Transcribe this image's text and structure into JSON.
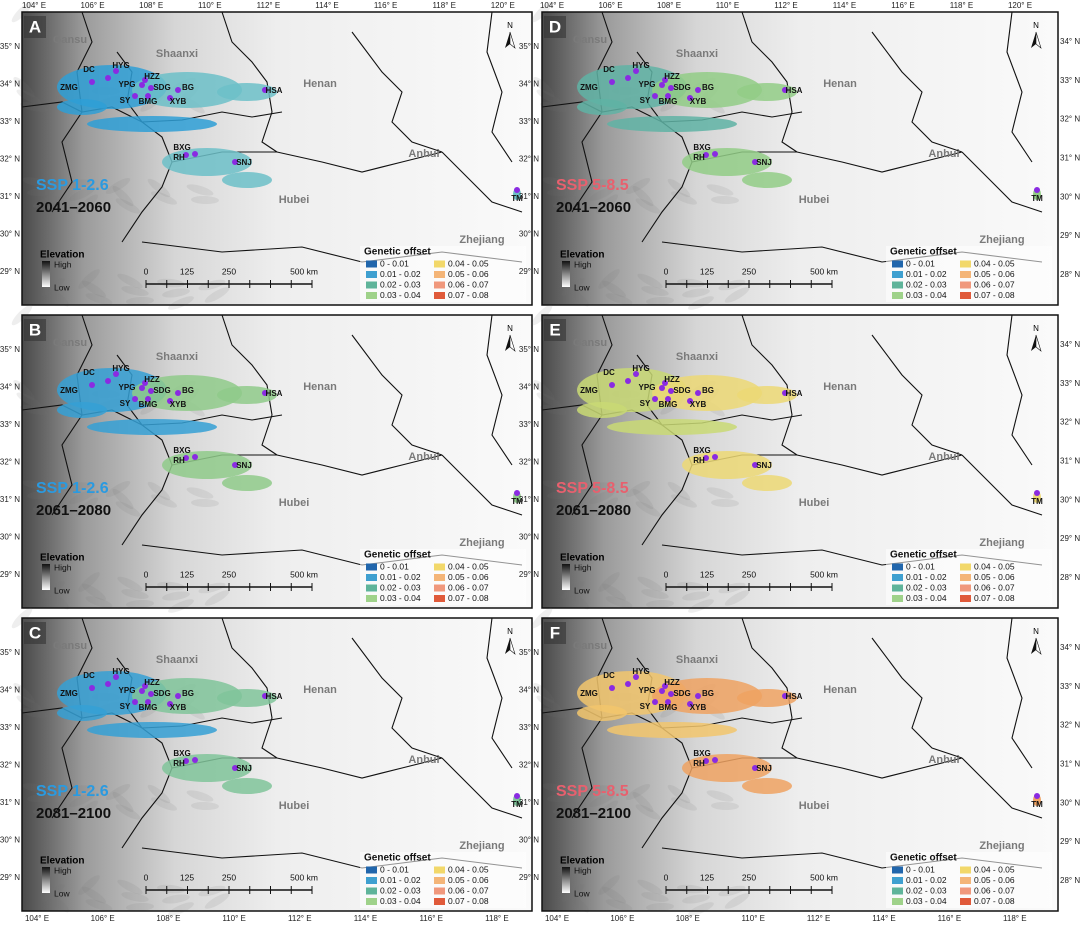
{
  "map": {
    "lon_top": [
      "104° E",
      "106° E",
      "108° E",
      "110° E",
      "112° E",
      "114° E",
      "116° E",
      "118° E",
      "120° E"
    ],
    "lon_bottom": [
      "104° E",
      "106° E",
      "108° E",
      "110° E",
      "112° E",
      "114° E",
      "116° E",
      "118° E"
    ],
    "lat_left": [
      "35° N",
      "34° N",
      "33° N",
      "32° N",
      "31° N",
      "30° N",
      "29° N"
    ],
    "lat_right": [
      "34° N",
      "33° N",
      "32° N",
      "31° N",
      "30° N",
      "29° N",
      "28° N"
    ],
    "provinces": [
      "Gansu",
      "Shaanxi",
      "Henan",
      "Anhui",
      "Hubei",
      "Zhejiang"
    ],
    "sites": [
      "DC",
      "HYG",
      "ZMG",
      "YPG",
      "HZZ",
      "SDG",
      "BG",
      "SY",
      "BMG",
      "XYB",
      "HSA",
      "BXG",
      "RH",
      "SNJ",
      "TM"
    ],
    "north": "N",
    "elevation": {
      "title": "Elevation",
      "high": "High",
      "low": "Low"
    },
    "scale": [
      "0",
      "125",
      "250",
      "500 km"
    ],
    "legend": {
      "title": "Genetic offset",
      "items": [
        "0 - 0.01",
        "0.01 - 0.02",
        "0.02 - 0.03",
        "0.03 - 0.04",
        "0.04 - 0.05",
        "0.05 - 0.06",
        "0.06 - 0.07",
        "0.07 - 0.08"
      ]
    }
  },
  "panels": [
    {
      "letter": "A",
      "scenario": "SSP 1-2.6",
      "period": "2041–2060"
    },
    {
      "letter": "D",
      "scenario": "SSP 5-8.5",
      "period": "2041–2060"
    },
    {
      "letter": "B",
      "scenario": "SSP 1-2.6",
      "period": "2061–2080"
    },
    {
      "letter": "E",
      "scenario": "SSP 5-8.5",
      "period": "2061–2080"
    },
    {
      "letter": "C",
      "scenario": "SSP 1-2.6",
      "period": "2081–2100"
    },
    {
      "letter": "F",
      "scenario": "SSP 5-8.5",
      "period": "2081–2100"
    }
  ]
}
